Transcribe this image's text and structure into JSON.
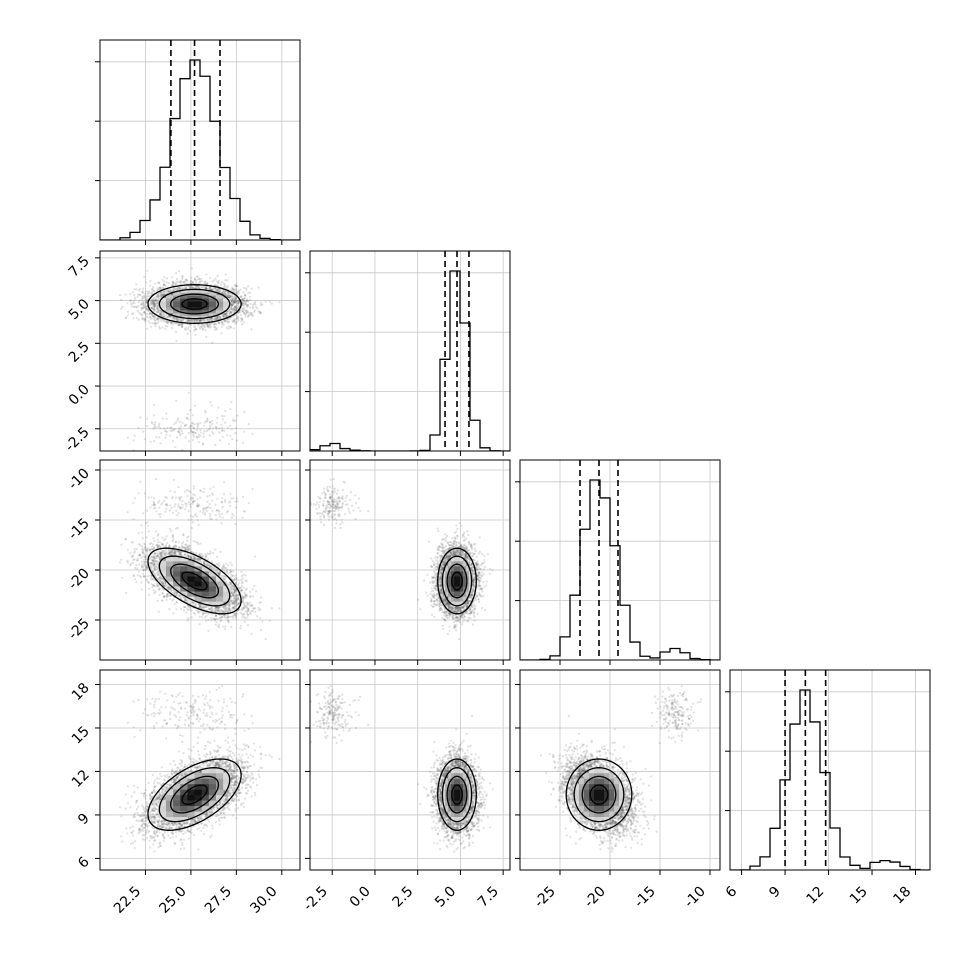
{
  "chart_data": {
    "type": "corner",
    "title": "",
    "parameters": [
      {
        "name": "",
        "range": [
          20.0,
          31.0
        ],
        "ticks": [
          "22.5",
          "25.0",
          "27.5",
          "30.0"
        ],
        "tick_values": [
          22.5,
          25.0,
          27.5,
          30.0
        ],
        "quantiles": [
          23.9,
          25.2,
          26.6
        ],
        "mean": 25.2,
        "sd": 1.25,
        "tail": {
          "mean": 25.0,
          "sd": 1.5
        }
      },
      {
        "name": "",
        "range": [
          -3.8,
          7.9
        ],
        "ticks": [
          "-2.5",
          "0.0",
          "2.5",
          "5.0",
          "7.5"
        ],
        "tick_values": [
          -2.5,
          0.0,
          2.5,
          5.0,
          7.5
        ],
        "quantiles": [
          4.1,
          4.8,
          5.5
        ],
        "mean": 4.8,
        "sd": 0.55,
        "tail": {
          "mean": -2.4,
          "sd": 0.6
        }
      },
      {
        "name": "",
        "range": [
          -29.0,
          -9.0
        ],
        "ticks": [
          "-25",
          "-20",
          "-15",
          "-10"
        ],
        "tick_values": [
          -25,
          -20,
          -15,
          -10
        ],
        "quantiles": [
          -23.0,
          -21.1,
          -19.2
        ],
        "mean": -21.1,
        "sd": 1.6,
        "tail": {
          "mean": -13.5,
          "sd": 1.0
        }
      },
      {
        "name": "",
        "range": [
          5.2,
          19.0
        ],
        "ticks": [
          "6",
          "9",
          "12",
          "15",
          "18"
        ],
        "tick_values": [
          6,
          9,
          12,
          15,
          18
        ],
        "quantiles": [
          9.0,
          10.4,
          11.8
        ],
        "mean": 10.4,
        "sd": 1.2,
        "tail": {
          "mean": 16.0,
          "sd": 0.8
        }
      }
    ],
    "correlations": {
      "1-0": 0.0,
      "2-0": -0.6,
      "2-1": 0.0,
      "3-0": 0.55,
      "3-1": 0.0,
      "3-2": 0.0
    },
    "tail_fraction": 0.035,
    "grid": true,
    "legend": "none"
  }
}
